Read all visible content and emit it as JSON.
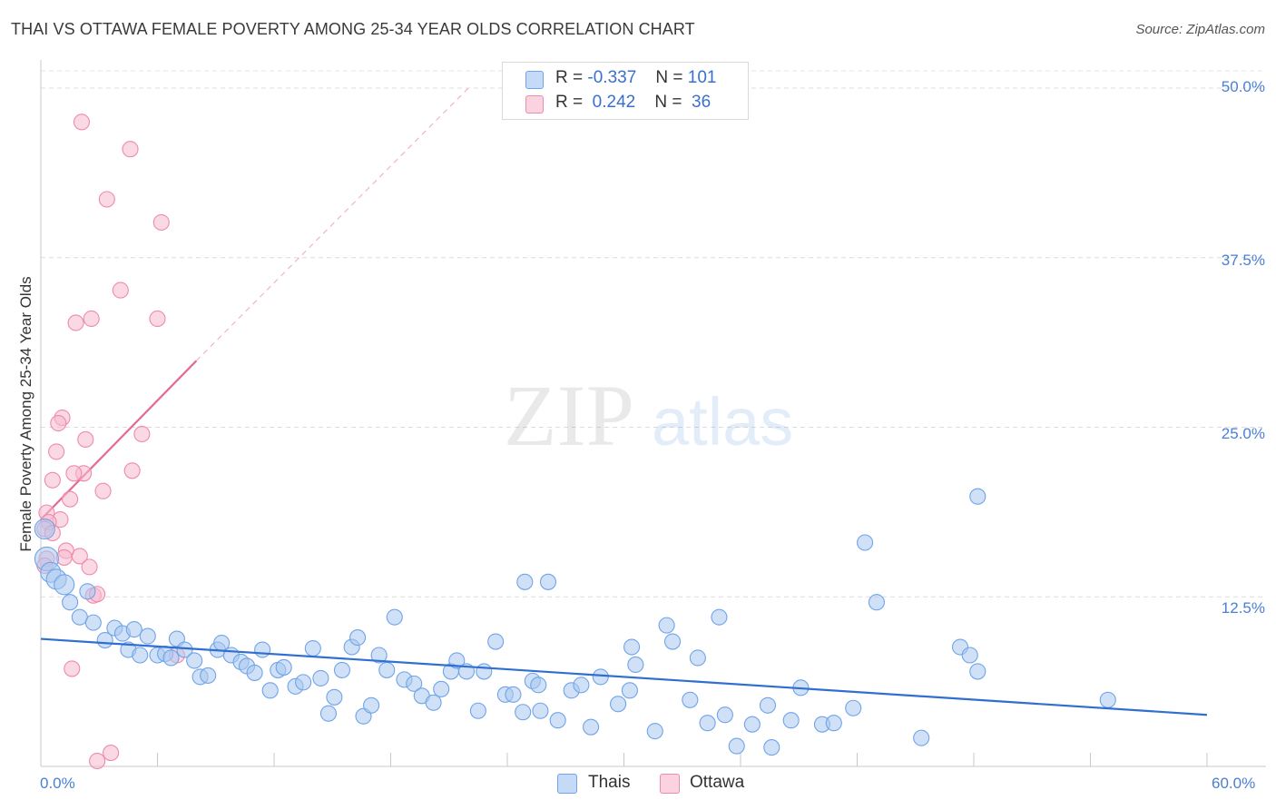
{
  "header": {
    "title": "THAI VS OTTAWA FEMALE POVERTY AMONG 25-34 YEAR OLDS CORRELATION CHART",
    "source": "Source: ZipAtlas.com"
  },
  "watermark": {
    "zip": "ZIP",
    "atlas": "atlas"
  },
  "legend": {
    "rows": [
      {
        "r_label": "R =",
        "r_value": "-0.337",
        "n_label": "N =",
        "n_value": "101",
        "color": "#a9c8f0"
      },
      {
        "r_label": "R =",
        "r_value": "0.242",
        "n_label": "N =",
        "n_value": "36",
        "color": "#f7b9cd"
      }
    ]
  },
  "bottom_legend": {
    "thais": "Thais",
    "ottawa": "Ottawa"
  },
  "chart_data": {
    "type": "scatter",
    "title": "THAI VS OTTAWA FEMALE POVERTY AMONG 25-34 YEAR OLDS CORRELATION CHART",
    "xlabel": "",
    "ylabel": "Female Poverty Among 25-34 Year Olds",
    "xlim": [
      0,
      60
    ],
    "ylim": [
      0,
      50
    ],
    "x_tick_labels": [
      "0.0%",
      "60.0%"
    ],
    "y_tick_labels": [
      "12.5%",
      "25.0%",
      "37.5%",
      "50.0%"
    ],
    "y_ticks": [
      12.5,
      25.0,
      37.5,
      50.0
    ],
    "grid": true,
    "legend_position": "top-center",
    "series": [
      {
        "name": "Thais",
        "color": "#6fa4e8",
        "fill": "#a9c8f0",
        "R": -0.337,
        "N": 101,
        "trend": {
          "x": [
            0,
            60
          ],
          "y": [
            9.4,
            3.8
          ]
        },
        "points": [
          [
            0.2,
            17.5
          ],
          [
            0.3,
            15.3
          ],
          [
            0.5,
            14.3
          ],
          [
            0.8,
            13.8
          ],
          [
            1.2,
            13.4
          ],
          [
            1.5,
            12.1
          ],
          [
            2.4,
            12.9
          ],
          [
            2.0,
            11.0
          ],
          [
            2.7,
            10.6
          ],
          [
            3.3,
            9.3
          ],
          [
            3.8,
            10.2
          ],
          [
            4.2,
            9.8
          ],
          [
            4.5,
            8.6
          ],
          [
            4.8,
            10.1
          ],
          [
            5.1,
            8.2
          ],
          [
            5.5,
            9.6
          ],
          [
            6.0,
            8.2
          ],
          [
            6.4,
            8.3
          ],
          [
            6.7,
            8.0
          ],
          [
            7.0,
            9.4
          ],
          [
            7.4,
            8.6
          ],
          [
            7.9,
            7.8
          ],
          [
            8.2,
            6.6
          ],
          [
            8.6,
            6.7
          ],
          [
            9.1,
            8.6
          ],
          [
            9.3,
            9.1
          ],
          [
            9.8,
            8.2
          ],
          [
            10.3,
            7.7
          ],
          [
            10.6,
            7.4
          ],
          [
            11.0,
            6.9
          ],
          [
            11.4,
            8.6
          ],
          [
            11.8,
            5.6
          ],
          [
            12.2,
            7.1
          ],
          [
            12.5,
            7.3
          ],
          [
            13.1,
            5.9
          ],
          [
            13.5,
            6.2
          ],
          [
            14.0,
            8.7
          ],
          [
            14.4,
            6.5
          ],
          [
            14.8,
            3.9
          ],
          [
            15.1,
            5.1
          ],
          [
            15.5,
            7.1
          ],
          [
            16.0,
            8.8
          ],
          [
            16.3,
            9.5
          ],
          [
            16.6,
            3.7
          ],
          [
            17.0,
            4.5
          ],
          [
            17.4,
            8.2
          ],
          [
            17.8,
            7.1
          ],
          [
            18.2,
            11.0
          ],
          [
            18.7,
            6.4
          ],
          [
            19.2,
            6.1
          ],
          [
            19.6,
            5.2
          ],
          [
            20.2,
            4.7
          ],
          [
            20.6,
            5.7
          ],
          [
            21.1,
            7.0
          ],
          [
            21.4,
            7.8
          ],
          [
            21.9,
            7.0
          ],
          [
            22.5,
            4.1
          ],
          [
            22.8,
            7.0
          ],
          [
            23.4,
            9.2
          ],
          [
            23.9,
            5.3
          ],
          [
            24.3,
            5.3
          ],
          [
            24.8,
            4.0
          ],
          [
            25.3,
            6.3
          ],
          [
            25.7,
            4.1
          ],
          [
            26.1,
            13.6
          ],
          [
            26.6,
            3.4
          ],
          [
            27.3,
            5.6
          ],
          [
            27.8,
            6.0
          ],
          [
            28.3,
            2.9
          ],
          [
            28.8,
            6.6
          ],
          [
            29.7,
            4.6
          ],
          [
            30.3,
            5.6
          ],
          [
            30.4,
            8.8
          ],
          [
            30.6,
            7.5
          ],
          [
            31.6,
            2.6
          ],
          [
            32.2,
            10.4
          ],
          [
            32.5,
            9.2
          ],
          [
            33.4,
            4.9
          ],
          [
            33.8,
            8.0
          ],
          [
            34.3,
            3.2
          ],
          [
            34.9,
            11.0
          ],
          [
            35.2,
            3.8
          ],
          [
            35.8,
            1.5
          ],
          [
            36.6,
            3.1
          ],
          [
            37.4,
            4.5
          ],
          [
            37.6,
            1.4
          ],
          [
            38.6,
            3.4
          ],
          [
            39.1,
            5.8
          ],
          [
            40.2,
            3.1
          ],
          [
            40.8,
            3.2
          ],
          [
            41.8,
            4.3
          ],
          [
            42.4,
            16.5
          ],
          [
            43.0,
            12.1
          ],
          [
            45.3,
            2.1
          ],
          [
            48.2,
            19.9
          ],
          [
            47.3,
            8.8
          ],
          [
            47.8,
            8.2
          ],
          [
            48.2,
            7.0
          ],
          [
            54.9,
            4.9
          ],
          [
            24.9,
            13.6
          ],
          [
            25.6,
            6.0
          ]
        ]
      },
      {
        "name": "Ottawa",
        "color": "#ee8aab",
        "fill": "#f7b9cd",
        "R": 0.242,
        "N": 36,
        "trend": {
          "x": [
            0,
            8
          ],
          "y": [
            18.2,
            29.9
          ],
          "dashed_to": [
            22.0,
            50.0
          ]
        },
        "points": [
          [
            2.1,
            47.5
          ],
          [
            4.6,
            45.5
          ],
          [
            3.4,
            41.8
          ],
          [
            6.2,
            40.1
          ],
          [
            4.1,
            35.1
          ],
          [
            6.0,
            33.0
          ],
          [
            2.6,
            33.0
          ],
          [
            1.8,
            32.7
          ],
          [
            1.1,
            25.7
          ],
          [
            0.9,
            25.3
          ],
          [
            5.2,
            24.5
          ],
          [
            2.3,
            24.1
          ],
          [
            0.8,
            23.2
          ],
          [
            4.7,
            21.8
          ],
          [
            2.2,
            21.6
          ],
          [
            1.7,
            21.6
          ],
          [
            0.6,
            21.1
          ],
          [
            3.2,
            20.3
          ],
          [
            1.5,
            19.7
          ],
          [
            0.3,
            18.7
          ],
          [
            1.0,
            18.2
          ],
          [
            0.4,
            18.0
          ],
          [
            0.2,
            17.5
          ],
          [
            0.6,
            17.2
          ],
          [
            1.3,
            15.9
          ],
          [
            2.0,
            15.5
          ],
          [
            1.2,
            15.4
          ],
          [
            0.3,
            15.3
          ],
          [
            0.2,
            14.8
          ],
          [
            2.5,
            14.7
          ],
          [
            2.7,
            12.6
          ],
          [
            2.9,
            12.7
          ],
          [
            1.6,
            7.2
          ],
          [
            7.0,
            8.2
          ],
          [
            3.6,
            1.0
          ],
          [
            2.9,
            0.4
          ]
        ]
      }
    ]
  }
}
